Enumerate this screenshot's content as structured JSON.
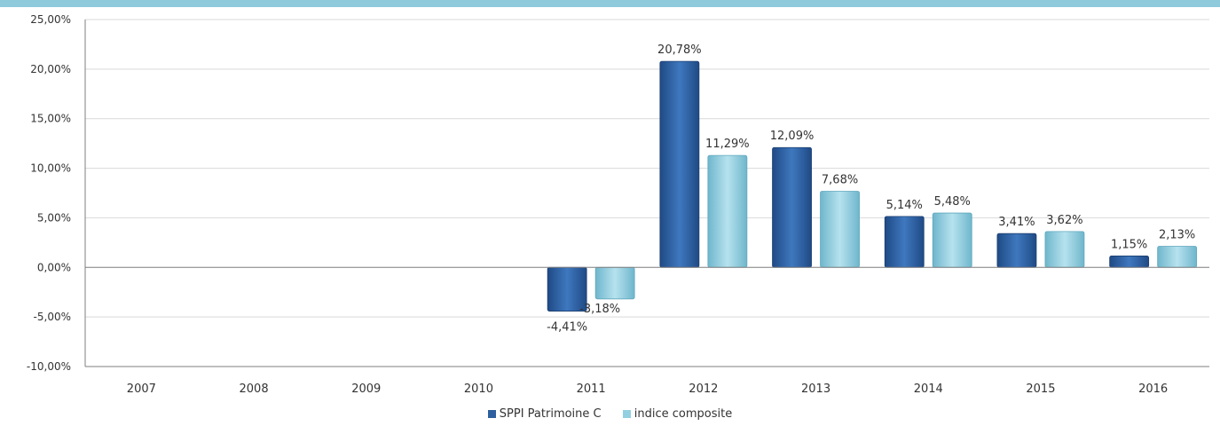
{
  "chart_data": {
    "type": "bar",
    "categories": [
      "2007",
      "2008",
      "2009",
      "2010",
      "2011",
      "2012",
      "2013",
      "2014",
      "2015",
      "2016"
    ],
    "series": [
      {
        "name": "SPPI Patrimoine C",
        "values": [
          null,
          null,
          null,
          null,
          -4.41,
          20.78,
          12.09,
          5.14,
          3.41,
          1.15
        ],
        "labels": [
          "",
          "",
          "",
          "",
          "-4,41%",
          "20,78%",
          "12,09%",
          "5,14%",
          "3,41%",
          "1,15%"
        ],
        "color": "#2e5f9e"
      },
      {
        "name": "indice composite",
        "values": [
          null,
          null,
          null,
          null,
          -3.18,
          11.29,
          7.68,
          5.48,
          3.62,
          2.13
        ],
        "labels": [
          "",
          "",
          "",
          "",
          "-3,18%",
          "11,29%",
          "7,68%",
          "5,48%",
          "3,62%",
          "2,13%"
        ],
        "color": "#92cfe0"
      }
    ],
    "ylim": [
      -10,
      25
    ],
    "yticks": [
      -10,
      -5,
      0,
      5,
      10,
      15,
      20,
      25
    ],
    "ytick_labels": [
      "-10,00%",
      "-5,00%",
      "0,00%",
      "5,00%",
      "10,00%",
      "15,00%",
      "20,00%",
      "25,00%"
    ],
    "title": "",
    "xlabel": "",
    "ylabel": "",
    "grid": true,
    "legend_position": "bottom"
  },
  "theme": {
    "top_band_color": "#8ec9dc",
    "axis_color": "#7f7f7f",
    "grid_color": "#d9d9d9"
  }
}
